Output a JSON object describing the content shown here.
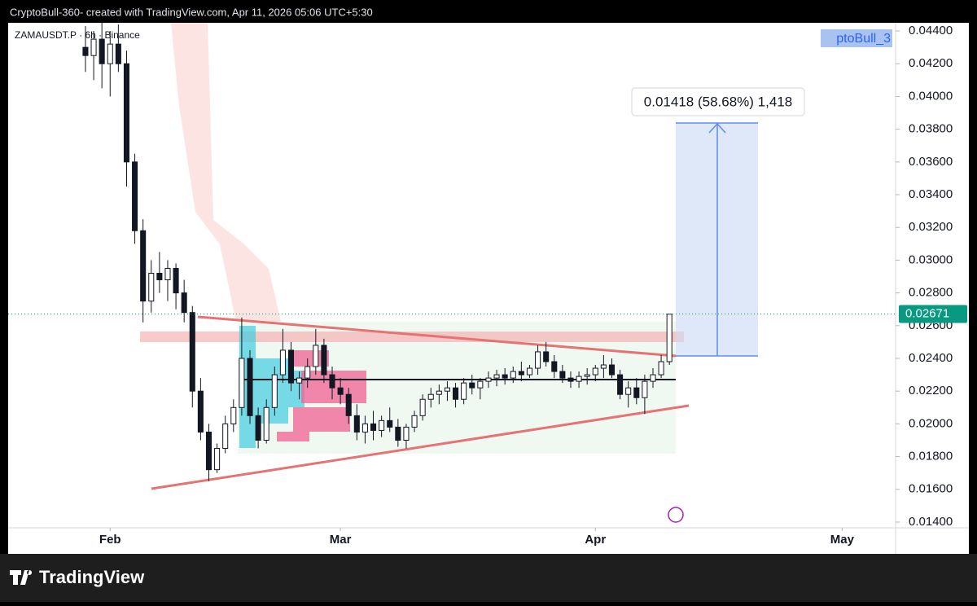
{
  "header": {
    "credit": "CryptoBull-360- created with TradingView.com, Apr 11, 2026 05:06 UTC+5:30"
  },
  "chart_data": {
    "type": "candlestick",
    "title": "ZAMAUSDT.P · 6h · Binance",
    "color": "#131722",
    "x": [
      29,
      30,
      31,
      32,
      33,
      34,
      35,
      36,
      37,
      38,
      39,
      40,
      41,
      42,
      43,
      44,
      45,
      46,
      47,
      48,
      49,
      50,
      51,
      52,
      53,
      54,
      55,
      56,
      57,
      58,
      59,
      60,
      61,
      62,
      63,
      64,
      65,
      66,
      67,
      68,
      69,
      70,
      71,
      72,
      73,
      74,
      75,
      76,
      77,
      78,
      79,
      80,
      81,
      82,
      83,
      84,
      85,
      86,
      87,
      88,
      89,
      90,
      91,
      92,
      93,
      94,
      95,
      96,
      97,
      98,
      99,
      100
    ],
    "open": [
      0.043,
      0.0425,
      0.0435,
      0.042,
      0.0432,
      0.042,
      0.036,
      0.0318,
      0.0275,
      0.0292,
      0.0288,
      0.0295,
      0.028,
      0.0268,
      0.022,
      0.0195,
      0.0172,
      0.0185,
      0.02,
      0.021,
      0.024,
      0.0205,
      0.019,
      0.021,
      0.023,
      0.0245,
      0.0225,
      0.0228,
      0.0235,
      0.0248,
      0.023,
      0.0222,
      0.0218,
      0.0205,
      0.0195,
      0.02,
      0.0196,
      0.0202,
      0.0198,
      0.019,
      0.0198,
      0.0205,
      0.0215,
      0.0218,
      0.022,
      0.0222,
      0.0215,
      0.0225,
      0.0222,
      0.0226,
      0.0228,
      0.023,
      0.0228,
      0.0232,
      0.023,
      0.0234,
      0.0244,
      0.0238,
      0.0232,
      0.0228,
      0.0226,
      0.0229,
      0.023,
      0.0234,
      0.0236,
      0.023,
      0.0218,
      0.0222,
      0.0216,
      0.0226,
      0.023,
      0.0238
    ],
    "high": [
      0.0443,
      0.044,
      0.0445,
      0.044,
      0.0444,
      0.0428,
      0.0365,
      0.0325,
      0.03,
      0.0305,
      0.03,
      0.0298,
      0.0288,
      0.0272,
      0.0228,
      0.02,
      0.0188,
      0.0205,
      0.0215,
      0.0265,
      0.0245,
      0.021,
      0.0215,
      0.0235,
      0.0258,
      0.025,
      0.0232,
      0.024,
      0.0258,
      0.0252,
      0.0235,
      0.0228,
      0.0222,
      0.0212,
      0.0205,
      0.0208,
      0.0205,
      0.021,
      0.0203,
      0.02,
      0.0208,
      0.0218,
      0.0222,
      0.0224,
      0.0226,
      0.0225,
      0.0228,
      0.023,
      0.0228,
      0.0232,
      0.0233,
      0.0234,
      0.0235,
      0.0238,
      0.0236,
      0.0248,
      0.025,
      0.0242,
      0.0236,
      0.0232,
      0.0232,
      0.0234,
      0.0236,
      0.0242,
      0.024,
      0.0233,
      0.0226,
      0.0228,
      0.023,
      0.0234,
      0.0242,
      0.0267
    ],
    "low": [
      0.0415,
      0.041,
      0.0405,
      0.04,
      0.0415,
      0.0345,
      0.031,
      0.0262,
      0.0268,
      0.028,
      0.0275,
      0.027,
      0.0262,
      0.021,
      0.019,
      0.0165,
      0.017,
      0.0182,
      0.0195,
      0.0205,
      0.02,
      0.0185,
      0.0188,
      0.0205,
      0.0225,
      0.022,
      0.0215,
      0.0222,
      0.023,
      0.0225,
      0.0215,
      0.0212,
      0.02,
      0.019,
      0.0188,
      0.019,
      0.0192,
      0.0195,
      0.0186,
      0.0185,
      0.0195,
      0.0202,
      0.021,
      0.0212,
      0.0214,
      0.021,
      0.0212,
      0.0218,
      0.0215,
      0.0222,
      0.0223,
      0.0224,
      0.0225,
      0.0226,
      0.0228,
      0.023,
      0.0235,
      0.0228,
      0.0225,
      0.0222,
      0.0222,
      0.0224,
      0.0226,
      0.0228,
      0.0228,
      0.0215,
      0.021,
      0.0212,
      0.0206,
      0.0222,
      0.0228,
      0.0236
    ],
    "close": [
      0.0425,
      0.0435,
      0.042,
      0.0432,
      0.042,
      0.036,
      0.0318,
      0.0275,
      0.0292,
      0.0288,
      0.0295,
      0.028,
      0.0268,
      0.022,
      0.0195,
      0.0172,
      0.0185,
      0.02,
      0.021,
      0.024,
      0.0205,
      0.019,
      0.021,
      0.023,
      0.0245,
      0.0225,
      0.0228,
      0.0235,
      0.0248,
      0.023,
      0.0222,
      0.0218,
      0.0205,
      0.0195,
      0.02,
      0.0196,
      0.0202,
      0.0198,
      0.019,
      0.0198,
      0.0205,
      0.0215,
      0.0218,
      0.022,
      0.0222,
      0.0215,
      0.0225,
      0.0222,
      0.0226,
      0.0228,
      0.023,
      0.0228,
      0.0232,
      0.023,
      0.0234,
      0.0244,
      0.0238,
      0.0232,
      0.0228,
      0.0226,
      0.0229,
      0.023,
      0.0234,
      0.0236,
      0.023,
      0.0218,
      0.0222,
      0.0216,
      0.0226,
      0.023,
      0.0238,
      0.0267
    ],
    "xlim": [
      19.6,
      127.5
    ],
    "xticks": [
      {
        "value": 32,
        "label": "Feb"
      },
      {
        "value": 60,
        "label": "Mar"
      },
      {
        "value": 91,
        "label": "Apr"
      },
      {
        "value": 121,
        "label": "May"
      }
    ],
    "ylim": [
      0.01365,
      0.0445
    ],
    "yticks": [
      {
        "value": 0.014,
        "label": "0.01400"
      },
      {
        "value": 0.016,
        "label": "0.01600"
      },
      {
        "value": 0.018,
        "label": "0.01800"
      },
      {
        "value": 0.02,
        "label": "0.02000"
      },
      {
        "value": 0.022,
        "label": "0.02200"
      },
      {
        "value": 0.024,
        "label": "0.02400"
      },
      {
        "value": 0.026,
        "label": "0.02600"
      },
      {
        "value": 0.028,
        "label": "0.02800"
      },
      {
        "value": 0.03,
        "label": "0.03000"
      },
      {
        "value": 0.032,
        "label": "0.03200"
      },
      {
        "value": 0.034,
        "label": "0.03400"
      },
      {
        "value": 0.036,
        "label": "0.03600"
      },
      {
        "value": 0.038,
        "label": "0.03800"
      },
      {
        "value": 0.04,
        "label": "0.04000"
      },
      {
        "value": 0.042,
        "label": "0.04200"
      },
      {
        "value": 0.044,
        "label": "0.04400"
      }
    ],
    "last_price": 0.02671,
    "last_price_color": "#089981",
    "measure_label": "0.01418 (58.68%) 1,418",
    "watermark": "ptoBull_3"
  },
  "footer": {
    "brand": "TradingView"
  }
}
